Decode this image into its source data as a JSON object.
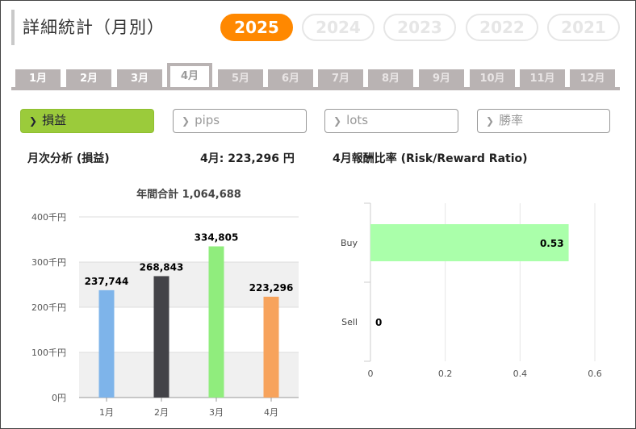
{
  "header": {
    "title": "詳細統計（月別）",
    "years": [
      {
        "label": "2025",
        "active": true
      },
      {
        "label": "2024",
        "active": false
      },
      {
        "label": "2023",
        "active": false
      },
      {
        "label": "2022",
        "active": false
      },
      {
        "label": "2021",
        "active": false
      }
    ]
  },
  "months": [
    "1月",
    "2月",
    "3月",
    "4月",
    "5月",
    "6月",
    "7月",
    "8月",
    "9月",
    "10月",
    "11月",
    "12月"
  ],
  "active_month_index": 3,
  "metrics": [
    {
      "label": "損益",
      "active": true
    },
    {
      "label": "pips",
      "active": false
    },
    {
      "label": "lots",
      "active": false
    },
    {
      "label": "勝率",
      "active": false
    }
  ],
  "left_panel": {
    "title": "月次分析 (損益)",
    "month_total": "4月:  223,296 円"
  },
  "right_panel": {
    "title": "4月報酬比率 (Risk/Reward Ratio)"
  },
  "colors": {
    "accent": "#ff8800",
    "active_metric": "#9bcb3b",
    "tab_gray": "#b9b3b3"
  },
  "chart_data": [
    {
      "type": "bar",
      "title": "年間合計 1,064,688",
      "categories": [
        "1月",
        "2月",
        "3月",
        "4月"
      ],
      "values": [
        237744,
        268843,
        334805,
        223296
      ],
      "value_labels": [
        "237,744",
        "268,843",
        "334,805",
        "223,296"
      ],
      "colors": [
        "#7eb4ea",
        "#434348",
        "#90ed7d",
        "#f7a35c"
      ],
      "ylim": [
        0,
        400000
      ],
      "y_ticks": [
        0,
        100000,
        200000,
        300000,
        400000
      ],
      "y_tick_labels": [
        "0円",
        "100千円",
        "200千円",
        "300千円",
        "400千円"
      ],
      "grid": true
    },
    {
      "type": "bar",
      "orientation": "horizontal",
      "categories": [
        "Buy",
        "Sell"
      ],
      "values": [
        0.53,
        0
      ],
      "value_labels": [
        "0.53",
        "0"
      ],
      "colors": [
        "#aaffaa",
        "#aaffaa"
      ],
      "xlim": [
        0,
        0.6
      ],
      "x_ticks": [
        0,
        0.2,
        0.4,
        0.6
      ],
      "x_tick_labels": [
        "0",
        "0.2",
        "0.4",
        "0.6"
      ],
      "grid": true
    }
  ]
}
